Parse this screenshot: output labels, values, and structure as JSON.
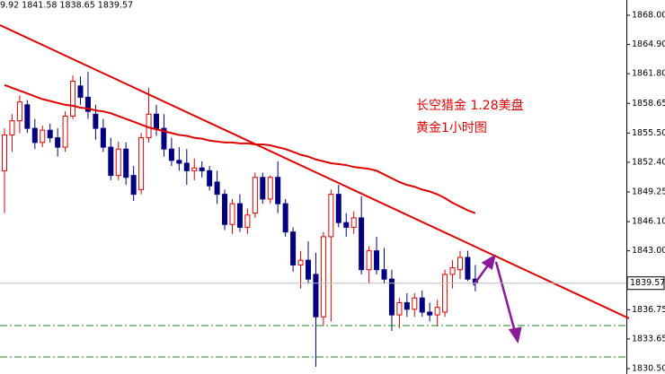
{
  "chart_data": {
    "type": "candlestick",
    "header": "9.92 1841.58 1838.65 1839.57",
    "annotations": [
      "长空猎金  1.28美盘",
      "黄金1小时图"
    ],
    "ylim": [
      1829.93,
      1869.62
    ],
    "yticks": [
      {
        "value": 1868.0,
        "label": "1868.00"
      },
      {
        "value": 1864.9,
        "label": "1864.90"
      },
      {
        "value": 1861.8,
        "label": "1861.80"
      },
      {
        "value": 1858.65,
        "label": "1858.65"
      },
      {
        "value": 1855.5,
        "label": "1855.50"
      },
      {
        "value": 1852.4,
        "label": "1852.40"
      },
      {
        "value": 1849.25,
        "label": "1849.25"
      },
      {
        "value": 1846.1,
        "label": "1846.10"
      },
      {
        "value": 1843.0,
        "label": "1843.00"
      },
      {
        "value": 1836.75,
        "label": "1836.75"
      },
      {
        "value": 1833.65,
        "label": "1833.65"
      },
      {
        "value": 1830.5,
        "label": "1830.50"
      }
    ],
    "last_price": 1839.57,
    "up_color": "#e00000",
    "down_color": "#000080",
    "ma_color": "#e00000",
    "open": [
      1851.5,
      1855.3,
      1856.8,
      1858.5,
      1856,
      1854.5,
      1855.8,
      1855,
      1854,
      1857.3,
      1860.5,
      1859.3,
      1857.5,
      1856,
      1854,
      1851,
      1853.8,
      1851,
      1849.5,
      1855,
      1857.5,
      1856,
      1853.8,
      1852.6,
      1852.3,
      1851.5,
      1851.8,
      1851.5,
      1850.3,
      1849,
      1845.8,
      1848,
      1845.5,
      1847,
      1850.8,
      1848.5,
      1850.8,
      1848,
      1845,
      1841.5,
      1842,
      1840.5,
      1836,
      1844.5,
      1849,
      1846,
      1845.5,
      1846.5,
      1841,
      1843,
      1841,
      1840,
      1836.2,
      1837.5,
      1836.8,
      1838,
      1836.5,
      1836.2,
      1836.5,
      1840.5,
      1841,
      1842.3,
      1840
    ],
    "high": [
      1856,
      1857.5,
      1859.5,
      1859,
      1857,
      1856.3,
      1856.5,
      1856,
      1857.8,
      1861.6,
      1861.5,
      1862,
      1858.5,
      1857,
      1855,
      1854.6,
      1854.5,
      1852,
      1855.5,
      1860.3,
      1858.5,
      1857.5,
      1855,
      1854,
      1853.8,
      1852.8,
      1852.5,
      1852,
      1851.5,
      1849.5,
      1848.5,
      1849,
      1847.5,
      1851.3,
      1851.3,
      1851,
      1852.5,
      1848.5,
      1845.5,
      1843,
      1844,
      1842.8,
      1845,
      1849.5,
      1850,
      1847,
      1847.2,
      1848.8,
      1843.5,
      1844.5,
      1843.3,
      1841,
      1838,
      1838.5,
      1838.5,
      1838.8,
      1837.5,
      1837.8,
      1841,
      1842,
      1843,
      1843,
      1841.5
    ],
    "low": [
      1847,
      1853.5,
      1855.5,
      1855.5,
      1853.8,
      1854,
      1854.5,
      1853,
      1853.5,
      1857,
      1858.5,
      1857,
      1854.8,
      1853.5,
      1850.5,
      1850.5,
      1850,
      1848.3,
      1849,
      1854.5,
      1855.2,
      1853,
      1852,
      1851.5,
      1850,
      1850.5,
      1850.8,
      1849.4,
      1848,
      1845.2,
      1844.8,
      1845,
      1844.8,
      1846.5,
      1848,
      1848,
      1847,
      1844.5,
      1840.8,
      1839,
      1839.5,
      1830.7,
      1835,
      1835.5,
      1845.5,
      1844.5,
      1844.8,
      1840.5,
      1839.5,
      1840.5,
      1839.5,
      1834.5,
      1834.8,
      1836,
      1836,
      1836,
      1835.5,
      1835,
      1836,
      1839,
      1840,
      1839.8,
      1838.7
    ],
    "close": [
      1855.3,
      1856.8,
      1858.8,
      1856,
      1854.5,
      1855.8,
      1855,
      1854,
      1857.3,
      1861,
      1859.3,
      1857.8,
      1856,
      1854,
      1851,
      1853.8,
      1850.8,
      1849,
      1855,
      1857.5,
      1856,
      1853.8,
      1852.6,
      1852.3,
      1851.5,
      1851.8,
      1851.5,
      1849.9,
      1849,
      1845.8,
      1848,
      1845.5,
      1846.8,
      1850.8,
      1848.5,
      1850.8,
      1848,
      1845,
      1841.5,
      1842,
      1840,
      1836,
      1844.5,
      1849,
      1846,
      1845.5,
      1846.5,
      1841,
      1843,
      1841,
      1840,
      1836.2,
      1837.5,
      1836.8,
      1838,
      1836.5,
      1836.2,
      1837,
      1840.5,
      1841.2,
      1842.3,
      1840,
      1839.57
    ],
    "ma": [
      1860.6,
      1860.3,
      1860.0,
      1859.7,
      1859.4,
      1859.1,
      1858.9,
      1858.7,
      1858.5,
      1858.4,
      1858.2,
      1858.1,
      1857.9,
      1857.8,
      1857.6,
      1857.3,
      1857.0,
      1856.7,
      1856.4,
      1856.1,
      1855.9,
      1855.7,
      1855.5,
      1855.3,
      1855.2,
      1855.0,
      1854.9,
      1854.7,
      1854.6,
      1854.5,
      1854.5,
      1854.4,
      1854.4,
      1854.3,
      1854.3,
      1854.2,
      1854.0,
      1853.8,
      1853.5,
      1853.2,
      1853.0,
      1852.7,
      1852.5,
      1852.3,
      1852.2,
      1852.1,
      1851.9,
      1851.8,
      1851.7,
      1851.5,
      1851.1,
      1850.7,
      1850.3,
      1850.0,
      1849.8,
      1849.5,
      1849.3,
      1849.0,
      1848.6,
      1848.1,
      1847.7,
      1847.3,
      1847.0
    ]
  }
}
